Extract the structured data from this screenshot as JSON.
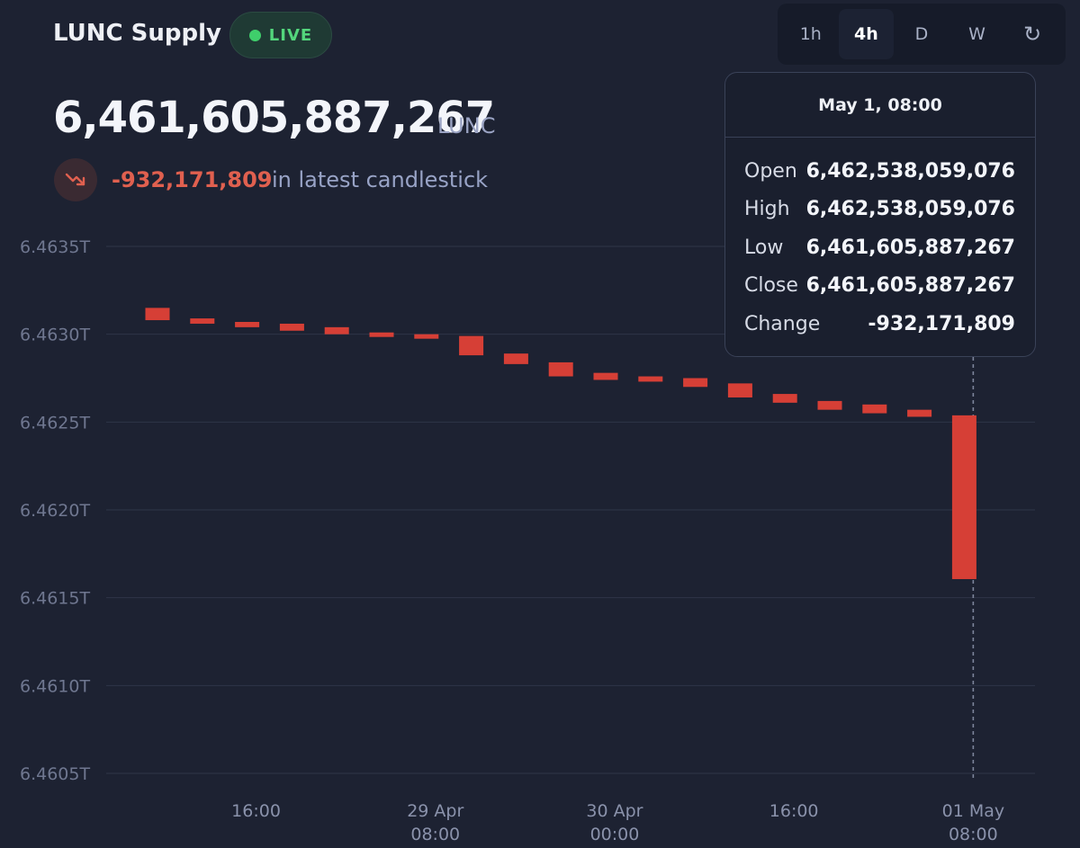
{
  "header": {
    "title": "LUNC Supply",
    "live_label": "LIVE",
    "timeframes": [
      "1h",
      "4h",
      "D",
      "W"
    ],
    "active_timeframe": "4h",
    "refresh_icon": "refresh-icon"
  },
  "summary": {
    "supply": "6,461,605,887,267",
    "unit": "LUNC",
    "change": "-932,171,809",
    "change_suffix": "in latest candlestick",
    "change_icon": "trend-down-icon"
  },
  "tooltip": {
    "date": "May 1, 08:00",
    "rows": [
      {
        "label": "Open",
        "value": "6,462,538,059,076"
      },
      {
        "label": "High",
        "value": "6,462,538,059,076"
      },
      {
        "label": "Low",
        "value": "6,461,605,887,267"
      },
      {
        "label": "Close",
        "value": "6,461,605,887,267"
      },
      {
        "label": "Change",
        "value": "-932,171,809"
      }
    ]
  },
  "colors": {
    "background": "#1d2232",
    "candle_down": "#d63f36",
    "live_green": "#53d67c",
    "change_red": "#e0604f"
  },
  "chart_data": {
    "type": "candlestick",
    "y_unit": "T",
    "ylim": [
      6.4605,
      6.4635
    ],
    "y_ticks": [
      "6.4635T",
      "6.4630T",
      "6.4625T",
      "6.4620T",
      "6.4615T",
      "6.4610T",
      "6.4605T"
    ],
    "y_tick_values": [
      6.4635,
      6.463,
      6.4625,
      6.462,
      6.4615,
      6.461,
      6.4605
    ],
    "x_tick_labels": [
      {
        "line1": "16:00",
        "line2": "",
        "index": 2.2
      },
      {
        "line1": "29 Apr",
        "line2": "08:00",
        "index": 6.2
      },
      {
        "line1": "30 Apr",
        "line2": "00:00",
        "index": 10.2
      },
      {
        "line1": "16:00",
        "line2": "",
        "index": 14.2
      },
      {
        "line1": "01 May",
        "line2": "08:00",
        "index": 18.2
      }
    ],
    "grid": true,
    "crosshair_index": 18.2,
    "candles": [
      {
        "open": 6.46315,
        "close": 6.46308
      },
      {
        "open": 6.46309,
        "close": 6.46306
      },
      {
        "open": 6.46307,
        "close": 6.46304
      },
      {
        "open": 6.46306,
        "close": 6.46302
      },
      {
        "open": 6.46304,
        "close": 6.463
      },
      {
        "open": 6.46301,
        "close": 6.46299
      },
      {
        "open": 6.463,
        "close": 6.46298
      },
      {
        "open": 6.46299,
        "close": 6.46288
      },
      {
        "open": 6.46289,
        "close": 6.46283
      },
      {
        "open": 6.46284,
        "close": 6.46276
      },
      {
        "open": 6.46278,
        "close": 6.46274
      },
      {
        "open": 6.46276,
        "close": 6.46273
      },
      {
        "open": 6.46275,
        "close": 6.4627
      },
      {
        "open": 6.46272,
        "close": 6.46264
      },
      {
        "open": 6.46266,
        "close": 6.46261
      },
      {
        "open": 6.46262,
        "close": 6.46257
      },
      {
        "open": 6.4626,
        "close": 6.46255
      },
      {
        "open": 6.46257,
        "close": 6.46253
      },
      {
        "open": 6.4625381,
        "close": 6.4616059
      }
    ]
  }
}
